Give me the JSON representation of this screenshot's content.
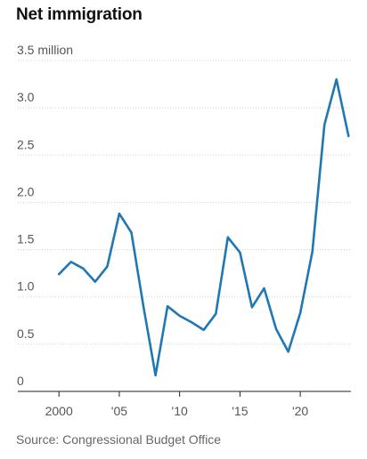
{
  "chart_data": {
    "type": "line",
    "title": "Net immigration",
    "source": "Source: Congressional Budget Office",
    "y_ticks": [
      "0",
      "0.5",
      "1.0",
      "1.5",
      "2.0",
      "2.5",
      "3.0",
      "3.5 million"
    ],
    "y_tick_values": [
      0,
      0.5,
      1.0,
      1.5,
      2.0,
      2.5,
      3.0,
      3.5
    ],
    "x_ticks": [
      "2000",
      "'05",
      "'10",
      "'15",
      "'20"
    ],
    "x_tick_values": [
      2000,
      2005,
      2010,
      2015,
      2020
    ],
    "xlim": [
      1999.1,
      2024.2
    ],
    "ylim": [
      0,
      3.5
    ],
    "series": [
      {
        "color": "#1f77b4",
        "x": [
          2000,
          2001,
          2002,
          2003,
          2004,
          2005,
          2006,
          2007,
          2008,
          2009,
          2010,
          2011,
          2012,
          2013,
          2014,
          2015,
          2016,
          2017,
          2018,
          2019,
          2020,
          2021,
          2022,
          2023,
          2024
        ],
        "values": [
          1.24,
          1.37,
          1.3,
          1.16,
          1.32,
          1.88,
          1.68,
          0.9,
          0.17,
          0.9,
          0.8,
          0.73,
          0.65,
          0.82,
          1.63,
          1.47,
          0.89,
          1.09,
          0.66,
          0.42,
          0.83,
          1.48,
          2.82,
          3.3,
          2.7
        ]
      }
    ]
  }
}
